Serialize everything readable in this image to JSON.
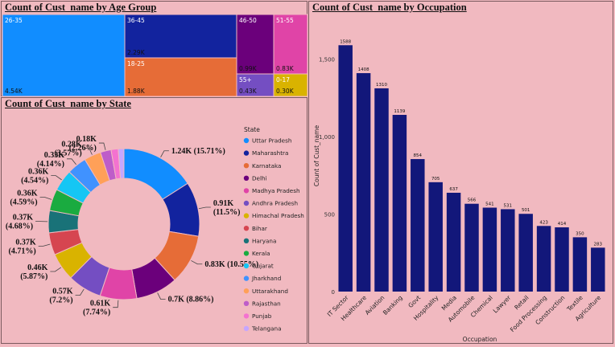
{
  "chart_data": [
    {
      "type": "treemap",
      "title": "Count of Cust_name by Age Group",
      "categories": [
        "26-35",
        "36-45",
        "18-25",
        "46-50",
        "51-55",
        "55+",
        "0-17"
      ],
      "values": [
        4.54,
        2.29,
        1.88,
        0.99,
        0.83,
        0.43,
        0.3
      ],
      "value_labels": [
        "4.54K",
        "2.29K",
        "1.88K",
        "0.99K",
        "0.83K",
        "0.43K",
        "0.30K"
      ],
      "colors": [
        "#118dff",
        "#12239e",
        "#e66c37",
        "#6b007b",
        "#e044a7",
        "#744ec2",
        "#d9b300"
      ]
    },
    {
      "type": "pie",
      "donut": true,
      "title": "Count of Cust_name by State",
      "legend_title": "State",
      "categories": [
        "Uttar Pradesh",
        "Maharashtra",
        "Karnataka",
        "Delhi",
        "Madhya Pradesh",
        "Andhra Pradesh",
        "Himachal Pradesh",
        "Bihar",
        "Haryana",
        "Kerala",
        "Gujarat",
        "Jharkhand",
        "Uttarakhand",
        "Rajasthan",
        "Punjab",
        "Telangana"
      ],
      "values": [
        15.71,
        11.5,
        10.55,
        8.86,
        7.74,
        7.2,
        5.87,
        4.71,
        4.68,
        4.59,
        4.54,
        4.14,
        3.57,
        2.26,
        1.5,
        1.2
      ],
      "data_labels": [
        "1.24K (15.71%)",
        "0.91K (11.5%)",
        "0.83K (10.55%)",
        "0.7K (8.86%)",
        "0.61K (7.74%)",
        "0.57K (7.2%)",
        "0.46K (5.87%)",
        "0.37K (4.71%)",
        "0.37K (4.68%)",
        "0.36K (4.59%)",
        "0.36K (4.54%)",
        "0.33K (4.14%)",
        "0.28K (3.57%)",
        "0.18K (2.26%)",
        "",
        ""
      ],
      "colors": [
        "#118dff",
        "#12239e",
        "#e66c37",
        "#6b007b",
        "#e044a7",
        "#744ec2",
        "#d9b300",
        "#d64550",
        "#197278",
        "#1aab40",
        "#15c6f4",
        "#4092ff",
        "#ffa058",
        "#be5dc9",
        "#f472d0",
        "#c5a6ff"
      ],
      "legend_placement": "right"
    },
    {
      "type": "bar",
      "title": "Count of Cust_name by Occupation",
      "xlabel": "Occupation",
      "ylabel": "Count of Cust_name",
      "categories": [
        "IT Sector",
        "Healthcare",
        "Aviation",
        "Banking",
        "Govt",
        "Hospitality",
        "Media",
        "Automobile",
        "Chemical",
        "Lawyer",
        "Retail",
        "Food Processing",
        "Construction",
        "Textile",
        "Agriculture"
      ],
      "values": [
        1588,
        1408,
        1310,
        1139,
        854,
        705,
        637,
        566,
        541,
        531,
        501,
        423,
        414,
        350,
        283
      ],
      "yticks": [
        0,
        500,
        1000,
        1500
      ],
      "ytick_labels": [
        "0",
        "500",
        "1,000",
        "1,500"
      ],
      "ylim": [
        0,
        1750
      ],
      "color": "#12177a"
    }
  ]
}
